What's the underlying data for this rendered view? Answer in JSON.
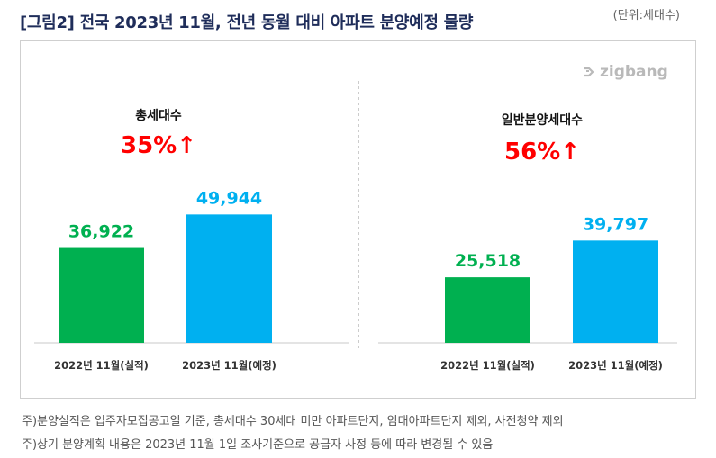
{
  "header": {
    "title": "[그림2] 전국 2023년 11월, 전년 동월 대비 아파트 분양예정 물량",
    "unit": "(단위:세대수)"
  },
  "logo": {
    "text": "zigbang",
    "icon": "zigbang-logo-icon"
  },
  "footnotes": [
    "주)분양실적은 입주자모집공고일 기준, 총세대수 30세대 미만 아파트단지, 임대아파트단지 제외, 사전청약 제외",
    "주)상기 분양계획 내용은 2023년 11월 1일 조사기준으로 공급자 사정 등에 따라 변경될 수 있음"
  ],
  "colors": {
    "actual": "#00b050",
    "planned": "#00b0f0",
    "growth": "#ff0000",
    "value_actual": "#00b050",
    "value_planned": "#00b0f0"
  },
  "chart_data": [
    {
      "type": "bar",
      "title": "총세대수",
      "growth_label": "35%",
      "growth_arrow": "↑",
      "categories": [
        "2022년 11월(실적)",
        "2023년 11월(예정)"
      ],
      "values": [
        36922,
        49944
      ],
      "value_labels": [
        "36,922",
        "49,944"
      ],
      "ylim": [
        0,
        55000
      ]
    },
    {
      "type": "bar",
      "title": "일반분양세대수",
      "growth_label": "56%",
      "growth_arrow": "↑",
      "categories": [
        "2022년 11월(실적)",
        "2023년 11월(예정)"
      ],
      "values": [
        25518,
        39797
      ],
      "value_labels": [
        "25,518",
        "39,797"
      ],
      "ylim": [
        0,
        55000
      ]
    }
  ]
}
